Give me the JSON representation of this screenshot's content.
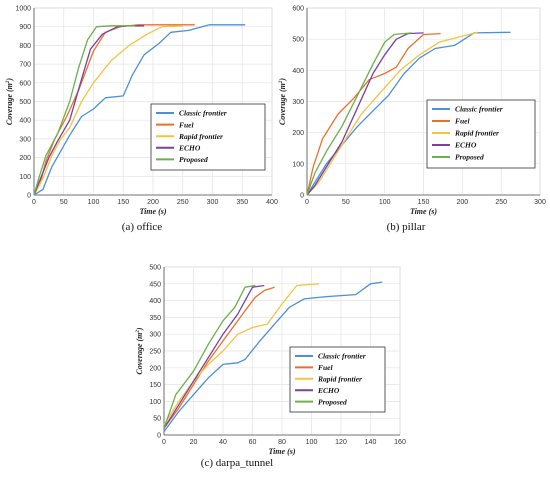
{
  "chart_data": [
    {
      "type": "line",
      "caption": "(a) office",
      "xlabel": "Time (s)",
      "ylabel": "Coverage (m²)",
      "ylabel_base": "Coverage (m",
      "ylabel_sup": "2",
      "ylabel_end": ")",
      "xlim": [
        0,
        400
      ],
      "ylim": [
        0,
        1000
      ],
      "xticks": [
        "0",
        "50",
        "100",
        "150",
        "200",
        "250",
        "300",
        "350",
        "400"
      ],
      "yticks": [
        "0",
        "100",
        "200",
        "300",
        "400",
        "500",
        "600",
        "700",
        "800",
        "900",
        "1000"
      ],
      "grid": true,
      "legend_position": "lower-right",
      "series": [
        {
          "name": "Classic frontier",
          "color": "#4a90d9",
          "points": [
            [
              0,
              0
            ],
            [
              15,
              30
            ],
            [
              30,
              150
            ],
            [
              60,
              320
            ],
            [
              80,
              420
            ],
            [
              100,
              460
            ],
            [
              120,
              520
            ],
            [
              150,
              530
            ],
            [
              165,
              640
            ],
            [
              185,
              750
            ],
            [
              210,
              810
            ],
            [
              230,
              870
            ],
            [
              260,
              880
            ],
            [
              295,
              910
            ],
            [
              355,
              910
            ]
          ]
        },
        {
          "name": "Fuel",
          "color": "#e8722a",
          "points": [
            [
              0,
              0
            ],
            [
              10,
              60
            ],
            [
              20,
              180
            ],
            [
              35,
              300
            ],
            [
              55,
              420
            ],
            [
              75,
              560
            ],
            [
              100,
              770
            ],
            [
              120,
              870
            ],
            [
              145,
              900
            ],
            [
              175,
              910
            ],
            [
              270,
              910
            ]
          ]
        },
        {
          "name": "Rapid frontier",
          "color": "#f5c242",
          "points": [
            [
              0,
              0
            ],
            [
              15,
              90
            ],
            [
              30,
              210
            ],
            [
              45,
              300
            ],
            [
              60,
              360
            ],
            [
              80,
              500
            ],
            [
              100,
              600
            ],
            [
              130,
              720
            ],
            [
              160,
              800
            ],
            [
              190,
              860
            ],
            [
              215,
              900
            ],
            [
              250,
              905
            ]
          ]
        },
        {
          "name": "ECHO",
          "color": "#7b3fa0",
          "points": [
            [
              0,
              0
            ],
            [
              10,
              80
            ],
            [
              25,
              200
            ],
            [
              40,
              290
            ],
            [
              60,
              400
            ],
            [
              80,
              620
            ],
            [
              95,
              780
            ],
            [
              115,
              860
            ],
            [
              140,
              900
            ],
            [
              160,
              905
            ],
            [
              185,
              905
            ]
          ]
        },
        {
          "name": "Proposed",
          "color": "#6ab04c",
          "points": [
            [
              0,
              0
            ],
            [
              8,
              90
            ],
            [
              20,
              210
            ],
            [
              40,
              330
            ],
            [
              60,
              500
            ],
            [
              75,
              680
            ],
            [
              90,
              830
            ],
            [
              105,
              900
            ],
            [
              130,
              905
            ],
            [
              170,
              905
            ]
          ]
        }
      ]
    },
    {
      "type": "line",
      "caption": "(b) pillar",
      "xlabel": "Time (s)",
      "ylabel": "Coverage (m²)",
      "ylabel_base": "Coverage (m",
      "ylabel_sup": "2",
      "ylabel_end": ")",
      "xlim": [
        0,
        300
      ],
      "ylim": [
        0,
        600
      ],
      "xticks": [
        "0",
        "50",
        "100",
        "150",
        "200",
        "250",
        "300"
      ],
      "yticks": [
        "0",
        "100",
        "200",
        "300",
        "400",
        "500",
        "600"
      ],
      "grid": true,
      "legend_position": "lower-right",
      "series": [
        {
          "name": "Classic frontier",
          "color": "#4a90d9",
          "points": [
            [
              0,
              0
            ],
            [
              10,
              40
            ],
            [
              25,
              100
            ],
            [
              45,
              160
            ],
            [
              65,
              220
            ],
            [
              85,
              270
            ],
            [
              105,
              320
            ],
            [
              125,
              390
            ],
            [
              145,
              440
            ],
            [
              165,
              470
            ],
            [
              190,
              480
            ],
            [
              215,
              520
            ],
            [
              262,
              522
            ]
          ]
        },
        {
          "name": "Fuel",
          "color": "#e8722a",
          "points": [
            [
              0,
              0
            ],
            [
              8,
              90
            ],
            [
              20,
              180
            ],
            [
              40,
              260
            ],
            [
              60,
              310
            ],
            [
              80,
              370
            ],
            [
              100,
              390
            ],
            [
              115,
              410
            ],
            [
              130,
              470
            ],
            [
              150,
              515
            ],
            [
              172,
              518
            ]
          ]
        },
        {
          "name": "Rapid frontier",
          "color": "#f5c242",
          "points": [
            [
              0,
              0
            ],
            [
              15,
              40
            ],
            [
              30,
              100
            ],
            [
              50,
              180
            ],
            [
              70,
              260
            ],
            [
              95,
              330
            ],
            [
              120,
              400
            ],
            [
              145,
              450
            ],
            [
              170,
              490
            ],
            [
              200,
              510
            ],
            [
              220,
              522
            ]
          ]
        },
        {
          "name": "ECHO",
          "color": "#7b3fa0",
          "points": [
            [
              0,
              0
            ],
            [
              10,
              30
            ],
            [
              25,
              90
            ],
            [
              45,
              170
            ],
            [
              65,
              280
            ],
            [
              85,
              390
            ],
            [
              100,
              450
            ],
            [
              115,
              500
            ],
            [
              130,
              518
            ],
            [
              150,
              520
            ]
          ]
        },
        {
          "name": "Proposed",
          "color": "#6ab04c",
          "points": [
            [
              0,
              0
            ],
            [
              10,
              70
            ],
            [
              25,
              140
            ],
            [
              45,
              220
            ],
            [
              65,
              320
            ],
            [
              85,
              420
            ],
            [
              100,
              490
            ],
            [
              112,
              515
            ],
            [
              135,
              520
            ]
          ]
        }
      ]
    },
    {
      "type": "line",
      "caption": "(c) darpa_tunnel",
      "xlabel": "Time (s)",
      "ylabel": "Coverage (m²)",
      "ylabel_base": "Coverage (m",
      "ylabel_sup": "2",
      "ylabel_end": ")",
      "xlim": [
        0,
        160
      ],
      "ylim": [
        0,
        500
      ],
      "xticks": [
        "0",
        "20",
        "40",
        "60",
        "80",
        "100",
        "120",
        "140",
        "160"
      ],
      "yticks": [
        "0",
        "50",
        "100",
        "150",
        "200",
        "250",
        "300",
        "350",
        "400",
        "450",
        "500"
      ],
      "grid": true,
      "legend_position": "lower-right",
      "series": [
        {
          "name": "Classic frontier",
          "color": "#4a90d9",
          "points": [
            [
              0,
              10
            ],
            [
              10,
              70
            ],
            [
              20,
              120
            ],
            [
              30,
              170
            ],
            [
              40,
              210
            ],
            [
              50,
              215
            ],
            [
              55,
              225
            ],
            [
              65,
              280
            ],
            [
              75,
              330
            ],
            [
              85,
              380
            ],
            [
              95,
              405
            ],
            [
              110,
              412
            ],
            [
              130,
              418
            ],
            [
              140,
              450
            ],
            [
              148,
              455
            ]
          ]
        },
        {
          "name": "Fuel",
          "color": "#e8722a",
          "points": [
            [
              0,
              20
            ],
            [
              10,
              80
            ],
            [
              20,
              150
            ],
            [
              30,
              220
            ],
            [
              40,
              280
            ],
            [
              50,
              340
            ],
            [
              55,
              370
            ],
            [
              62,
              410
            ],
            [
              68,
              430
            ],
            [
              75,
              440
            ]
          ]
        },
        {
          "name": "Rapid frontier",
          "color": "#f5c242",
          "points": [
            [
              0,
              30
            ],
            [
              10,
              100
            ],
            [
              20,
              160
            ],
            [
              30,
              210
            ],
            [
              40,
              250
            ],
            [
              50,
              300
            ],
            [
              60,
              320
            ],
            [
              70,
              330
            ],
            [
              80,
              390
            ],
            [
              90,
              445
            ],
            [
              105,
              450
            ]
          ]
        },
        {
          "name": "ECHO",
          "color": "#7b3fa0",
          "points": [
            [
              0,
              20
            ],
            [
              10,
              90
            ],
            [
              20,
              160
            ],
            [
              30,
              230
            ],
            [
              40,
              300
            ],
            [
              50,
              360
            ],
            [
              55,
              400
            ],
            [
              60,
              440
            ],
            [
              68,
              445
            ]
          ]
        },
        {
          "name": "Proposed",
          "color": "#6ab04c",
          "points": [
            [
              0,
              20
            ],
            [
              8,
              120
            ],
            [
              20,
              190
            ],
            [
              30,
              270
            ],
            [
              40,
              340
            ],
            [
              48,
              380
            ],
            [
              55,
              440
            ],
            [
              62,
              445
            ]
          ]
        }
      ]
    }
  ]
}
